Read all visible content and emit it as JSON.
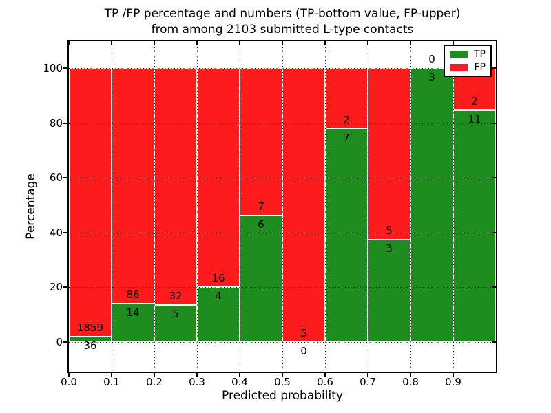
{
  "figure": {
    "title_line1": "TP /FP percentage and numbers (TP-bottom value, FP-upper)",
    "title_line2": "from among 2103 submitted L-type contacts"
  },
  "chart_data": {
    "type": "bar",
    "subtype": "stacked-percentage-histogram",
    "title": "TP /FP percentage and numbers (TP-bottom value, FP-upper) from among 2103 submitted L-type contacts",
    "xlabel": "Predicted probability",
    "ylabel": "Percentage",
    "total_submitted_contacts": 2103,
    "bin_width": 0.1,
    "categories": [
      "0.0-0.1",
      "0.1-0.2",
      "0.2-0.3",
      "0.3-0.4",
      "0.4-0.5",
      "0.5-0.6",
      "0.6-0.7",
      "0.7-0.8",
      "0.8-0.9",
      "0.9-1.0"
    ],
    "series": [
      {
        "name": "TP",
        "color": "#1e8c1e",
        "counts": [
          36,
          14,
          5,
          4,
          6,
          0,
          7,
          3,
          3,
          11
        ]
      },
      {
        "name": "FP",
        "color": "#fd1c1c",
        "counts": [
          1859,
          86,
          32,
          16,
          7,
          5,
          2,
          5,
          0,
          2
        ]
      }
    ],
    "tp_percent_of_bin": [
      1.9,
      14.0,
      13.5,
      20.0,
      46.2,
      0.0,
      77.8,
      37.5,
      100.0,
      84.6
    ],
    "x_tick_labels": [
      "0.0",
      "0.1",
      "0.2",
      "0.3",
      "0.4",
      "0.5",
      "0.6",
      "0.7",
      "0.8",
      "0.9"
    ],
    "y_ticks": [
      0,
      20,
      40,
      60,
      80,
      100
    ],
    "xlim": [
      0.0,
      1.0
    ],
    "ylim": [
      -10.8,
      109.8
    ],
    "grid": "dotted",
    "legend": {
      "position": "upper-right",
      "entries": [
        {
          "label": "TP",
          "color": "#1e8c1e"
        },
        {
          "label": "FP",
          "color": "#fd1c1c"
        }
      ]
    }
  }
}
